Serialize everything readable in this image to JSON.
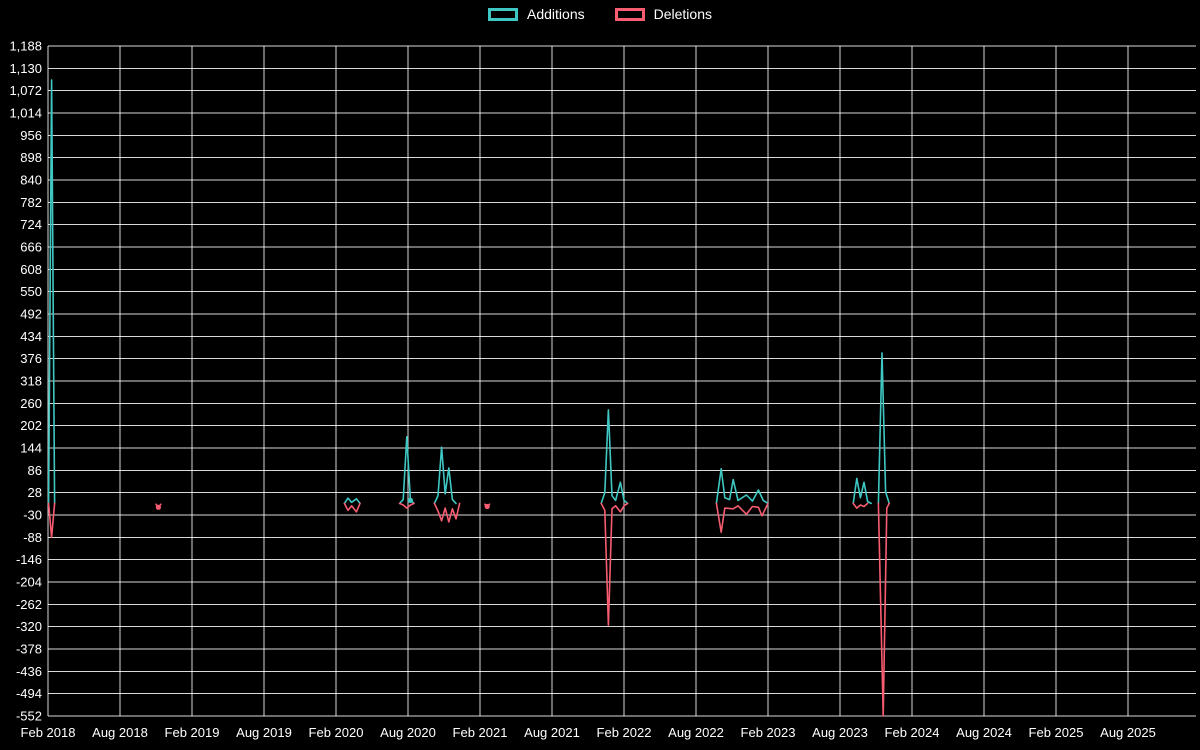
{
  "legend": {
    "additions_label": "Additions",
    "deletions_label": "Deletions"
  },
  "colors": {
    "background": "#000000",
    "grid": "#ffffff",
    "text": "#ffffff",
    "additions": "#3fc8c3",
    "deletions": "#f85c70"
  },
  "chart_data": {
    "type": "line",
    "title": "",
    "legend_position": "top",
    "grid": true,
    "x_axis": {
      "unit": "months since Feb 2018",
      "tick_interval_months": 6,
      "range_months": [
        0,
        95.7
      ],
      "tick_labels": [
        "Feb 2018",
        "Aug 2018",
        "Feb 2019",
        "Aug 2019",
        "Feb 2020",
        "Aug 2020",
        "Feb 2021",
        "Aug 2021",
        "Feb 2022",
        "Aug 2022",
        "Feb 2023",
        "Aug 2023",
        "Feb 2024",
        "Aug 2024",
        "Feb 2025",
        "Aug 2025"
      ]
    },
    "y_axis": {
      "min": -552,
      "max": 1188,
      "tick_step": 58,
      "tick_labels": [
        "1,188",
        "1,130",
        "1,072",
        "1,014",
        "956",
        "898",
        "840",
        "782",
        "724",
        "666",
        "608",
        "550",
        "492",
        "434",
        "376",
        "318",
        "260",
        "202",
        "144",
        "86",
        "28",
        "-30",
        "-88",
        "-146",
        "-204",
        "-262",
        "-320",
        "-378",
        "-436",
        "-494",
        "-552"
      ]
    },
    "series": [
      {
        "name": "Additions",
        "color": "#3fc8c3",
        "segments": [
          [
            [
              0.05,
              0
            ],
            [
              0.3,
              1100
            ],
            [
              0.55,
              0
            ]
          ],
          [
            [
              24.7,
              0
            ],
            [
              25.0,
              14
            ],
            [
              25.3,
              3
            ],
            [
              25.7,
              12
            ],
            [
              26.0,
              0
            ]
          ],
          [
            [
              29.3,
              0
            ],
            [
              29.6,
              10
            ],
            [
              29.9,
              173
            ],
            [
              30.2,
              8
            ],
            [
              30.5,
              0
            ]
          ],
          [
            [
              32.2,
              0
            ],
            [
              32.5,
              20
            ],
            [
              32.8,
              146
            ],
            [
              33.1,
              25
            ],
            [
              33.4,
              92
            ],
            [
              33.7,
              10
            ],
            [
              34.0,
              0
            ]
          ],
          [
            [
              46.1,
              0
            ],
            [
              46.4,
              28
            ],
            [
              46.7,
              243
            ],
            [
              47.0,
              20
            ],
            [
              47.3,
              8
            ],
            [
              47.7,
              55
            ],
            [
              48.0,
              8
            ],
            [
              48.3,
              0
            ]
          ],
          [
            [
              55.7,
              0
            ],
            [
              56.1,
              90
            ],
            [
              56.4,
              15
            ],
            [
              56.8,
              10
            ],
            [
              57.1,
              62
            ],
            [
              57.5,
              8
            ],
            [
              58.2,
              22
            ],
            [
              58.7,
              6
            ],
            [
              59.2,
              35
            ],
            [
              59.6,
              8
            ],
            [
              60.0,
              0
            ]
          ],
          [
            [
              67.1,
              0
            ],
            [
              67.4,
              65
            ],
            [
              67.7,
              15
            ],
            [
              68.0,
              55
            ],
            [
              68.3,
              5
            ],
            [
              68.6,
              0
            ]
          ],
          [
            [
              69.2,
              0
            ],
            [
              69.5,
              391
            ],
            [
              69.8,
              30
            ],
            [
              70.1,
              0
            ]
          ]
        ],
        "markers": [
          [
            30.2,
            8
          ]
        ]
      },
      {
        "name": "Deletions",
        "color": "#f85c70",
        "segments": [
          [
            [
              0.05,
              0
            ],
            [
              0.3,
              -88
            ],
            [
              0.55,
              0
            ]
          ],
          [
            [
              9.0,
              -2
            ],
            [
              9.2,
              -10
            ],
            [
              9.4,
              -2
            ]
          ],
          [
            [
              24.7,
              0
            ],
            [
              25.0,
              -18
            ],
            [
              25.3,
              -6
            ],
            [
              25.7,
              -22
            ],
            [
              26.0,
              0
            ]
          ],
          [
            [
              29.3,
              0
            ],
            [
              29.6,
              -4
            ],
            [
              29.9,
              -12
            ],
            [
              30.2,
              -4
            ],
            [
              30.5,
              0
            ]
          ],
          [
            [
              32.2,
              0
            ],
            [
              32.5,
              -20
            ],
            [
              32.8,
              -45
            ],
            [
              33.1,
              -12
            ],
            [
              33.4,
              -48
            ],
            [
              33.7,
              -14
            ],
            [
              34.0,
              -40
            ],
            [
              34.3,
              0
            ]
          ],
          [
            [
              36.4,
              -2
            ],
            [
              36.6,
              -8
            ],
            [
              36.8,
              -2
            ]
          ],
          [
            [
              46.1,
              0
            ],
            [
              46.4,
              -18
            ],
            [
              46.7,
              -316
            ],
            [
              47.0,
              -14
            ],
            [
              47.3,
              -6
            ],
            [
              47.7,
              -22
            ],
            [
              48.0,
              -6
            ],
            [
              48.3,
              0
            ]
          ],
          [
            [
              55.7,
              0
            ],
            [
              56.1,
              -75
            ],
            [
              56.4,
              -12
            ],
            [
              57.1,
              -14
            ],
            [
              57.5,
              -6
            ],
            [
              58.2,
              -28
            ],
            [
              58.7,
              -8
            ],
            [
              59.2,
              -10
            ],
            [
              59.5,
              -32
            ],
            [
              60.0,
              0
            ]
          ],
          [
            [
              67.1,
              0
            ],
            [
              67.4,
              -12
            ],
            [
              67.7,
              -4
            ],
            [
              68.0,
              -8
            ],
            [
              68.3,
              0
            ]
          ],
          [
            [
              69.2,
              0
            ],
            [
              69.6,
              -552
            ],
            [
              69.9,
              -12
            ],
            [
              70.1,
              0
            ]
          ]
        ],
        "markers": [
          [
            9.2,
            -10
          ],
          [
            36.6,
            -8
          ]
        ]
      }
    ]
  }
}
